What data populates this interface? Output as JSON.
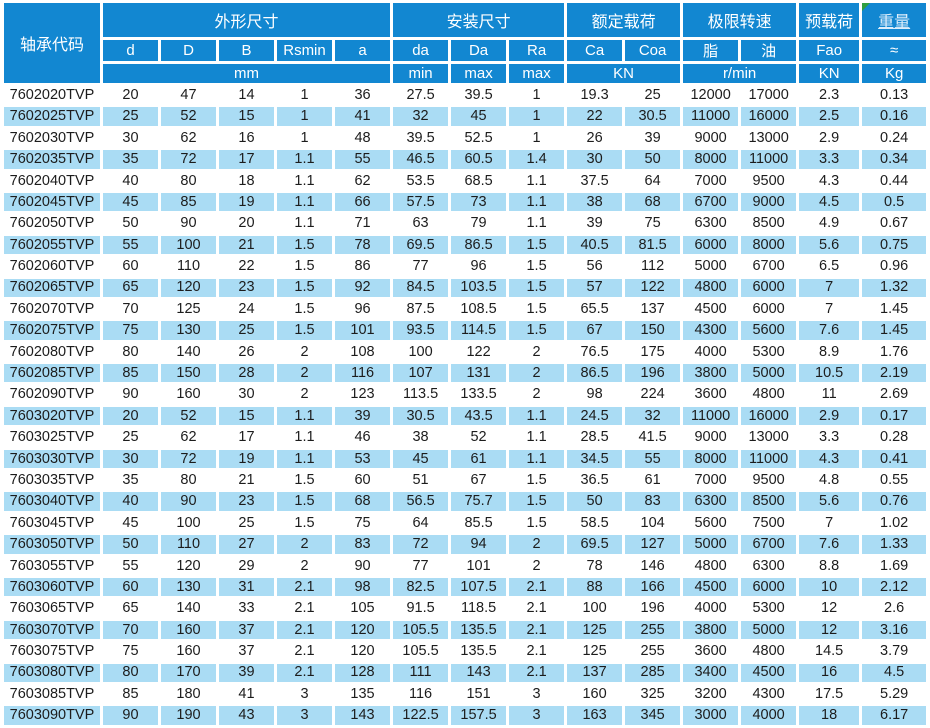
{
  "table": {
    "corner_header": "轴承代码",
    "groups": [
      "外形尺寸",
      "安装尺寸",
      "额定载荷",
      "极限转速",
      "预载荷",
      "重量"
    ],
    "sub_columns": [
      "d",
      "D",
      "B",
      "Rsmin",
      "a",
      "da",
      "Da",
      "Ra",
      "Ca",
      "Coa",
      "脂",
      "油",
      "Fao",
      "≈"
    ],
    "units": [
      "mm",
      "min",
      "max",
      "max",
      "KN",
      "r/min",
      "KN",
      "Kg"
    ],
    "rows": [
      [
        "7602020TVP",
        "20",
        "47",
        "14",
        "1",
        "36",
        "27.5",
        "39.5",
        "1",
        "19.3",
        "25",
        "12000",
        "17000",
        "2.3",
        "0.13"
      ],
      [
        "7602025TVP",
        "25",
        "52",
        "15",
        "1",
        "41",
        "32",
        "45",
        "1",
        "22",
        "30.5",
        "11000",
        "16000",
        "2.5",
        "0.16"
      ],
      [
        "7602030TVP",
        "30",
        "62",
        "16",
        "1",
        "48",
        "39.5",
        "52.5",
        "1",
        "26",
        "39",
        "9000",
        "13000",
        "2.9",
        "0.24"
      ],
      [
        "7602035TVP",
        "35",
        "72",
        "17",
        "1.1",
        "55",
        "46.5",
        "60.5",
        "1.4",
        "30",
        "50",
        "8000",
        "11000",
        "3.3",
        "0.34"
      ],
      [
        "7602040TVP",
        "40",
        "80",
        "18",
        "1.1",
        "62",
        "53.5",
        "68.5",
        "1.1",
        "37.5",
        "64",
        "7000",
        "9500",
        "4.3",
        "0.44"
      ],
      [
        "7602045TVP",
        "45",
        "85",
        "19",
        "1.1",
        "66",
        "57.5",
        "73",
        "1.1",
        "38",
        "68",
        "6700",
        "9000",
        "4.5",
        "0.5"
      ],
      [
        "7602050TVP",
        "50",
        "90",
        "20",
        "1.1",
        "71",
        "63",
        "79",
        "1.1",
        "39",
        "75",
        "6300",
        "8500",
        "4.9",
        "0.67"
      ],
      [
        "7602055TVP",
        "55",
        "100",
        "21",
        "1.5",
        "78",
        "69.5",
        "86.5",
        "1.5",
        "40.5",
        "81.5",
        "6000",
        "8000",
        "5.6",
        "0.75"
      ],
      [
        "7602060TVP",
        "60",
        "110",
        "22",
        "1.5",
        "86",
        "77",
        "96",
        "1.5",
        "56",
        "112",
        "5000",
        "6700",
        "6.5",
        "0.96"
      ],
      [
        "7602065TVP",
        "65",
        "120",
        "23",
        "1.5",
        "92",
        "84.5",
        "103.5",
        "1.5",
        "57",
        "122",
        "4800",
        "6000",
        "7",
        "1.32"
      ],
      [
        "7602070TVP",
        "70",
        "125",
        "24",
        "1.5",
        "96",
        "87.5",
        "108.5",
        "1.5",
        "65.5",
        "137",
        "4500",
        "6000",
        "7",
        "1.45"
      ],
      [
        "7602075TVP",
        "75",
        "130",
        "25",
        "1.5",
        "101",
        "93.5",
        "114.5",
        "1.5",
        "67",
        "150",
        "4300",
        "5600",
        "7.6",
        "1.45"
      ],
      [
        "7602080TVP",
        "80",
        "140",
        "26",
        "2",
        "108",
        "100",
        "122",
        "2",
        "76.5",
        "175",
        "4000",
        "5300",
        "8.9",
        "1.76"
      ],
      [
        "7602085TVP",
        "85",
        "150",
        "28",
        "2",
        "116",
        "107",
        "131",
        "2",
        "86.5",
        "196",
        "3800",
        "5000",
        "10.5",
        "2.19"
      ],
      [
        "7602090TVP",
        "90",
        "160",
        "30",
        "2",
        "123",
        "113.5",
        "133.5",
        "2",
        "98",
        "224",
        "3600",
        "4800",
        "11",
        "2.69"
      ],
      [
        "7603020TVP",
        "20",
        "52",
        "15",
        "1.1",
        "39",
        "30.5",
        "43.5",
        "1.1",
        "24.5",
        "32",
        "11000",
        "16000",
        "2.9",
        "0.17"
      ],
      [
        "7603025TVP",
        "25",
        "62",
        "17",
        "1.1",
        "46",
        "38",
        "52",
        "1.1",
        "28.5",
        "41.5",
        "9000",
        "13000",
        "3.3",
        "0.28"
      ],
      [
        "7603030TVP",
        "30",
        "72",
        "19",
        "1.1",
        "53",
        "45",
        "61",
        "1.1",
        "34.5",
        "55",
        "8000",
        "11000",
        "4.3",
        "0.41"
      ],
      [
        "7603035TVP",
        "35",
        "80",
        "21",
        "1.5",
        "60",
        "51",
        "67",
        "1.5",
        "36.5",
        "61",
        "7000",
        "9500",
        "4.8",
        "0.55"
      ],
      [
        "7603040TVP",
        "40",
        "90",
        "23",
        "1.5",
        "68",
        "56.5",
        "75.7",
        "1.5",
        "50",
        "83",
        "6300",
        "8500",
        "5.6",
        "0.76"
      ],
      [
        "7603045TVP",
        "45",
        "100",
        "25",
        "1.5",
        "75",
        "64",
        "85.5",
        "1.5",
        "58.5",
        "104",
        "5600",
        "7500",
        "7",
        "1.02"
      ],
      [
        "7603050TVP",
        "50",
        "110",
        "27",
        "2",
        "83",
        "72",
        "94",
        "2",
        "69.5",
        "127",
        "5000",
        "6700",
        "7.6",
        "1.33"
      ],
      [
        "7603055TVP",
        "55",
        "120",
        "29",
        "2",
        "90",
        "77",
        "101",
        "2",
        "78",
        "146",
        "4800",
        "6300",
        "8.8",
        "1.69"
      ],
      [
        "7603060TVP",
        "60",
        "130",
        "31",
        "2.1",
        "98",
        "82.5",
        "107.5",
        "2.1",
        "88",
        "166",
        "4500",
        "6000",
        "10",
        "2.12"
      ],
      [
        "7603065TVP",
        "65",
        "140",
        "33",
        "2.1",
        "105",
        "91.5",
        "118.5",
        "2.1",
        "100",
        "196",
        "4000",
        "5300",
        "12",
        "2.6"
      ],
      [
        "7603070TVP",
        "70",
        "160",
        "37",
        "2.1",
        "120",
        "105.5",
        "135.5",
        "2.1",
        "125",
        "255",
        "3800",
        "5000",
        "12",
        "3.16"
      ],
      [
        "7603075TVP",
        "75",
        "160",
        "37",
        "2.1",
        "120",
        "105.5",
        "135.5",
        "2.1",
        "125",
        "255",
        "3600",
        "4800",
        "14.5",
        "3.79"
      ],
      [
        "7603080TVP",
        "80",
        "170",
        "39",
        "2.1",
        "128",
        "111",
        "143",
        "2.1",
        "137",
        "285",
        "3400",
        "4500",
        "16",
        "4.5"
      ],
      [
        "7603085TVP",
        "85",
        "180",
        "41",
        "3",
        "135",
        "116",
        "151",
        "3",
        "160",
        "325",
        "3200",
        "4300",
        "17.5",
        "5.29"
      ],
      [
        "7603090TVP",
        "90",
        "190",
        "43",
        "3",
        "143",
        "122.5",
        "157.5",
        "3",
        "163",
        "345",
        "3000",
        "4000",
        "18",
        "6.17"
      ]
    ]
  },
  "colors": {
    "header_bg": "#1287d1",
    "stripe_bg": "#aadcf4",
    "header_text": "#ffffff",
    "body_text": "#1c1c1c",
    "weight_link_text": "#ddeefb",
    "corner_flag": "#2f9e3f"
  },
  "icons": {
    "corner_flag": "green-corner-triangle"
  }
}
